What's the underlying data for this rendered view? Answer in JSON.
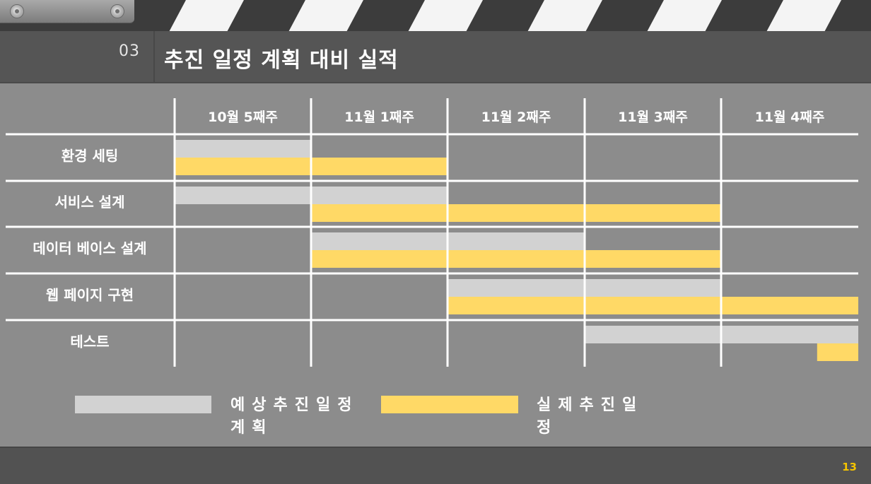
{
  "slide": {
    "section_number": "03",
    "title": "추진 일정 계획 대비 실적",
    "page_number": "13"
  },
  "chart_data": {
    "type": "gantt",
    "title": "",
    "categories": [
      "10월 5째주",
      "11월 1째주",
      "11월 2째주",
      "11월 3째주",
      "11월 4째주"
    ],
    "tasks": [
      {
        "name": "환경 세팅",
        "planned": [
          0,
          1
        ],
        "actual": [
          0,
          2
        ]
      },
      {
        "name": "서비스 설계",
        "planned": [
          0,
          2
        ],
        "actual": [
          1,
          4
        ]
      },
      {
        "name": "데이터 베이스 설계",
        "planned": [
          1,
          3
        ],
        "actual": [
          1,
          4
        ]
      },
      {
        "name": "웹 페이지 구현",
        "planned": [
          2,
          4
        ],
        "actual": [
          2,
          5
        ]
      },
      {
        "name": "테스트",
        "planned": [
          3,
          5
        ],
        "actual": [
          4.7,
          5
        ]
      }
    ],
    "series": [
      {
        "name": "예상추진일정계획",
        "color": "#d2d2d2"
      },
      {
        "name": "실제추진일정",
        "color": "#ffd966"
      }
    ],
    "grid": true,
    "legend_position": "bottom"
  }
}
